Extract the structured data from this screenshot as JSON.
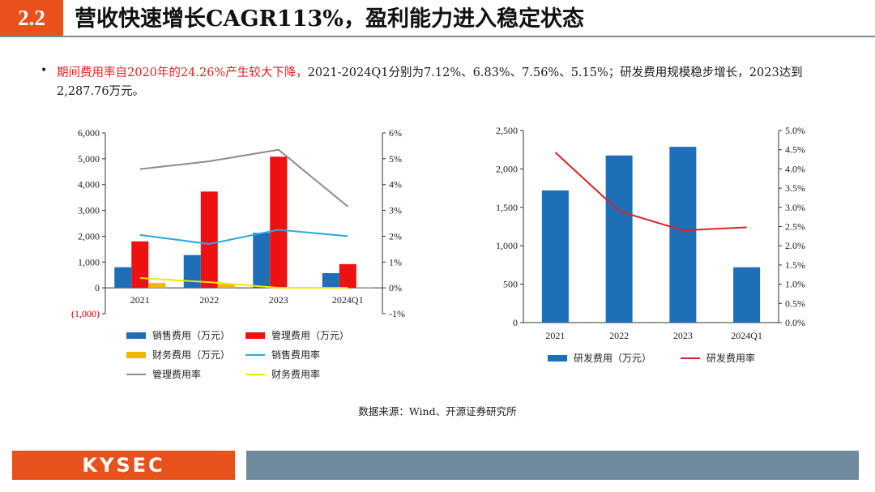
{
  "header": {
    "section_number": "2.2",
    "title": "营收快速增长CAGR113%，盈利能力进入稳定状态"
  },
  "summary": {
    "bullet": "•",
    "highlight": "期间费用率自2020年的24.26%产生较大下降，",
    "rest": "2021-2024Q1分别为7.12%、6.83%、7.56%、5.15%；研发费用规模稳步增长，2023达到2,287.76万元。"
  },
  "chart_data": [
    {
      "type": "bar",
      "categories": [
        "2021",
        "2022",
        "2023",
        "2024Q1"
      ],
      "left_axis": {
        "ticks": [
          "6,000",
          "5,000",
          "4,000",
          "3,000",
          "2,000",
          "1,000",
          "0",
          "(1,000)"
        ],
        "ylim": [
          -1000,
          6000
        ]
      },
      "right_axis": {
        "ticks": [
          "6%",
          "5%",
          "4%",
          "3%",
          "2%",
          "1%",
          "0%",
          "-1%"
        ],
        "ylim": [
          -1,
          6
        ]
      },
      "bars": [
        {
          "name": "销售费用（万元）",
          "color": "#1f6fb8",
          "values": [
            800,
            1270,
            2130,
            570
          ]
        },
        {
          "name": "管理费用（万元）",
          "color": "#ee1111",
          "values": [
            1800,
            3730,
            5080,
            920
          ]
        },
        {
          "name": "财务费用（万元）",
          "color": "#f2b705",
          "values": [
            190,
            140,
            10,
            10
          ]
        }
      ],
      "lines": [
        {
          "name": "销售费用率",
          "color": "#2aa9e0",
          "values": [
            2.05,
            1.7,
            2.25,
            2.0
          ]
        },
        {
          "name": "管理费用率",
          "color": "#8c8c8c",
          "values": [
            4.6,
            4.9,
            5.35,
            3.15
          ]
        },
        {
          "name": "财务费用率",
          "color": "#f5e400",
          "values": [
            0.38,
            0.22,
            0.0,
            0.0
          ]
        }
      ],
      "grid": false,
      "legend": "bottom"
    },
    {
      "type": "bar",
      "categories": [
        "2021",
        "2022",
        "2023",
        "2024Q1"
      ],
      "left_axis": {
        "ticks": [
          "2,500",
          "2,000",
          "1,500",
          "1,000",
          "500",
          "0"
        ],
        "ylim": [
          0,
          2500
        ]
      },
      "right_axis": {
        "ticks": [
          "5.0%",
          "4.5%",
          "4.0%",
          "3.5%",
          "3.0%",
          "2.5%",
          "2.0%",
          "1.5%",
          "1.0%",
          "0.5%",
          "0.0%"
        ],
        "ylim": [
          0,
          5
        ]
      },
      "bars": [
        {
          "name": "研发费用（万元）",
          "color": "#1f6fb8",
          "values": [
            1720,
            2175,
            2288,
            720
          ]
        }
      ],
      "lines": [
        {
          "name": "研发费用率",
          "color": "#dd2222",
          "values": [
            4.43,
            2.9,
            2.4,
            2.48
          ]
        }
      ],
      "grid": false,
      "legend": "bottom"
    }
  ],
  "source": "数据来源：Wind、开源证券研究所",
  "footer": {
    "logo": "KYSEC"
  }
}
